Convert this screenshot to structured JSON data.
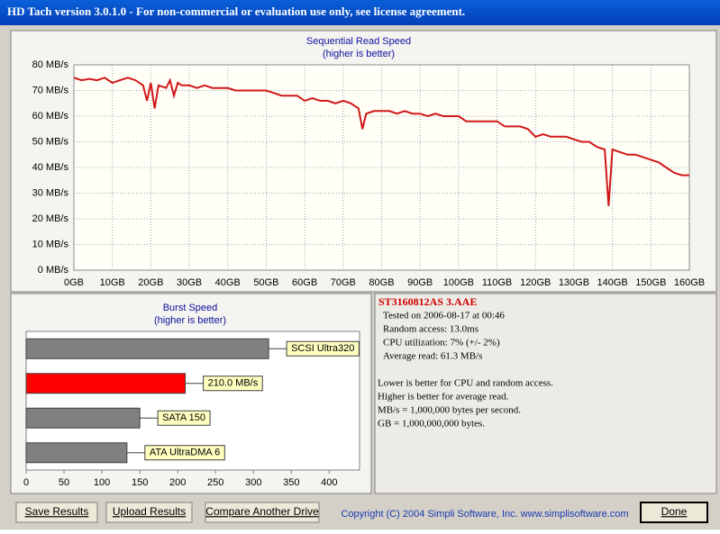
{
  "window": {
    "title": "HD Tach version 3.0.1.0  - For non-commercial or evaluation use only, see license agreement."
  },
  "chart_data": [
    {
      "type": "line",
      "title": "Sequential Read Speed",
      "subtitle": "(higher is better)",
      "color": "#d01818",
      "grid": true,
      "x": [
        0,
        2,
        4,
        6,
        8,
        10,
        12,
        14,
        16,
        18,
        19,
        20,
        21,
        22,
        24,
        25,
        26,
        27,
        28,
        30,
        32,
        34,
        36,
        38,
        40,
        42,
        44,
        46,
        48,
        50,
        52,
        54,
        56,
        58,
        60,
        62,
        64,
        66,
        68,
        70,
        72,
        74,
        75,
        76,
        78,
        80,
        82,
        84,
        86,
        88,
        90,
        92,
        94,
        96,
        98,
        100,
        102,
        104,
        106,
        108,
        110,
        112,
        114,
        116,
        118,
        120,
        122,
        124,
        126,
        128,
        130,
        132,
        134,
        136,
        138,
        139,
        140,
        142,
        144,
        146,
        148,
        150,
        152,
        154,
        156,
        158,
        160
      ],
      "values": [
        75,
        74,
        74.5,
        74,
        75,
        73,
        74,
        75,
        74,
        72,
        66,
        73,
        63,
        72,
        71,
        74,
        68,
        73,
        72,
        72,
        71,
        72,
        71,
        71,
        71,
        70,
        70,
        70,
        70,
        70,
        69,
        68,
        68,
        68,
        66,
        67,
        66,
        66,
        65,
        66,
        65,
        63,
        55,
        61,
        62,
        62,
        62,
        61,
        62,
        61,
        61,
        60,
        61,
        60,
        60,
        60,
        58,
        58,
        58,
        58,
        58,
        56,
        56,
        56,
        55,
        52,
        53,
        52,
        52,
        52,
        51,
        50,
        50,
        48,
        47,
        25,
        47,
        46,
        45,
        45,
        44,
        43,
        42,
        40,
        38,
        37,
        37
      ],
      "xlim": [
        0,
        160
      ],
      "xticks": [
        {
          "value": 0,
          "label": "0GB"
        },
        {
          "value": 10,
          "label": "10GB"
        },
        {
          "value": 20,
          "label": "20GB"
        },
        {
          "value": 30,
          "label": "30GB"
        },
        {
          "value": 40,
          "label": "40GB"
        },
        {
          "value": 50,
          "label": "50GB"
        },
        {
          "value": 60,
          "label": "60GB"
        },
        {
          "value": 70,
          "label": "70GB"
        },
        {
          "value": 80,
          "label": "80GB"
        },
        {
          "value": 90,
          "label": "90GB"
        },
        {
          "value": 100,
          "label": "100GB"
        },
        {
          "value": 110,
          "label": "110GB"
        },
        {
          "value": 120,
          "label": "120GB"
        },
        {
          "value": 130,
          "label": "130GB"
        },
        {
          "value": 140,
          "label": "140GB"
        },
        {
          "value": 150,
          "label": "150GB"
        },
        {
          "value": 160,
          "label": "160GB"
        }
      ],
      "ylim": [
        0,
        80
      ],
      "yticks": [
        {
          "value": 0,
          "label": "0 MB/s"
        },
        {
          "value": 10,
          "label": "10 MB/s"
        },
        {
          "value": 20,
          "label": "20 MB/s"
        },
        {
          "value": 30,
          "label": "30 MB/s"
        },
        {
          "value": 40,
          "label": "40 MB/s"
        },
        {
          "value": 50,
          "label": "50 MB/s"
        },
        {
          "value": 60,
          "label": "60 MB/s"
        },
        {
          "value": 70,
          "label": "70 MB/s"
        },
        {
          "value": 80,
          "label": "80 MB/s"
        }
      ]
    },
    {
      "type": "hbar",
      "title": "Burst Speed",
      "subtitle": "(higher is better)",
      "categories": [
        "SCSI Ultra320",
        null,
        "SATA 150",
        "ATA UltraDMA 6"
      ],
      "values": [
        320,
        210,
        150,
        133
      ],
      "value_labels": [
        null,
        "210.0 MB/s",
        null,
        null
      ],
      "colors": [
        "#808080",
        "#ff0000",
        "#808080",
        "#808080"
      ],
      "xlim": [
        0,
        440
      ],
      "xticks": [
        0,
        50,
        100,
        150,
        200,
        250,
        300,
        350,
        400
      ]
    }
  ],
  "info": {
    "drive": "ST3160812AS 3.AAE",
    "stats": [
      "Tested on 2006-08-17 at 00:46",
      "Random access: 13.0ms",
      "CPU utilization: 7% (+/- 2%)",
      "Average read: 61.3 MB/s"
    ],
    "notes": [
      "Lower is better for CPU and random access.",
      "Higher is better for average read.",
      "MB/s = 1,000,000 bytes per second.",
      "GB = 1,000,000,000 bytes."
    ]
  },
  "buttons": [
    "Save Results",
    "Upload Results",
    "Compare Another Drive",
    "Done"
  ],
  "copyright": "Copyright (C) 2004 Simpli Software, Inc. www.simplisoftware.com"
}
